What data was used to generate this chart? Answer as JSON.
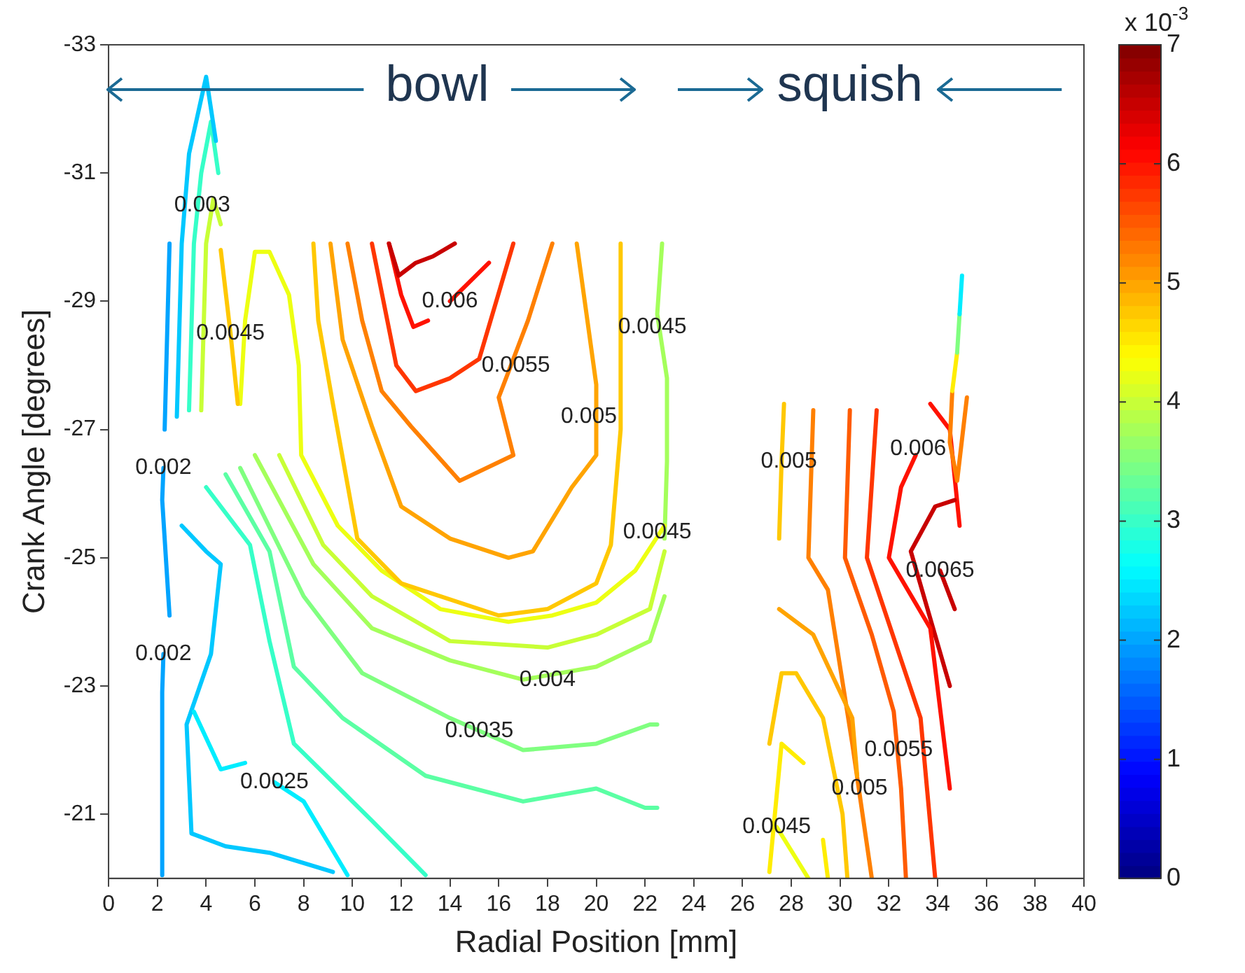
{
  "chart_data": {
    "type": "line",
    "xlabel": "Radial Position [mm]",
    "ylabel": "Crank Angle [degrees]",
    "clabel": "x 10$^{-3}$",
    "xlim": [
      0,
      40
    ],
    "xticks": [
      0,
      2,
      4,
      6,
      8,
      10,
      12,
      14,
      16,
      18,
      20,
      22,
      24,
      26,
      28,
      30,
      32,
      34,
      36,
      38,
      40
    ],
    "ylim": [
      -20,
      -33
    ],
    "yticks": [
      -33,
      -31,
      -29,
      -27,
      -25,
      -23,
      -21
    ],
    "clim": [
      0,
      7
    ],
    "cticks": [
      0,
      1,
      2,
      3,
      4,
      5,
      6,
      7
    ],
    "grid": false,
    "legend": false,
    "marker": "none",
    "line_style": "solid",
    "series": [
      {
        "color": "#c80000",
        "x": [
          11.5,
          11.9,
          12.6,
          13.3,
          14.2
        ],
        "values": [
          -29.9,
          -29.4,
          -29.6,
          -29.7,
          -29.9
        ]
      },
      {
        "color": "#ff1200",
        "x": [
          11.5,
          12,
          12.5,
          13.1
        ],
        "values": [
          -29.9,
          -29.1,
          -28.6,
          -28.7
        ]
      },
      {
        "color": "#ff1200",
        "x": [
          14,
          14.8,
          15.6
        ],
        "values": [
          -29,
          -29.3,
          -29.6
        ]
      },
      {
        "color": "#ff3600",
        "x": [
          10.8,
          11.8,
          12.6,
          14,
          15.2,
          16.6
        ],
        "values": [
          -29.9,
          -28,
          -27.6,
          -27.8,
          -28.1,
          -29.9
        ]
      },
      {
        "color": "#ff8000",
        "x": [
          9.8,
          10.4,
          11.2,
          12.4,
          14.4,
          16.6,
          16,
          17.2,
          18.2
        ],
        "values": [
          -29.9,
          -28.7,
          -27.6,
          -27.05,
          -26.2,
          -26.6,
          -27.5,
          -28.7,
          -29.9
        ]
      },
      {
        "color": "#ffa400",
        "x": [
          9.1,
          9.6,
          10.8,
          12,
          14,
          16.4,
          17.4,
          19,
          20,
          20,
          19.2
        ],
        "values": [
          -29.9,
          -28.4,
          -27.05,
          -25.8,
          -25.3,
          -25,
          -25.1,
          -26.1,
          -26.6,
          -27.7,
          -29.9
        ]
      },
      {
        "color": "#ffc800",
        "x": [
          8.4,
          8.6,
          9.2,
          10.2,
          12,
          16,
          18,
          20,
          20.6,
          20.8,
          21,
          21
        ],
        "values": [
          -29.9,
          -28.7,
          -27.4,
          -25.3,
          -24.6,
          -24.1,
          -24.2,
          -24.6,
          -25.2,
          -26.1,
          -27,
          -29.9
        ]
      },
      {
        "color": "#ffc800",
        "x": [
          4.6,
          5,
          5.3
        ],
        "values": [
          -29.8,
          -28.5,
          -27.4
        ]
      },
      {
        "color": "#edff12",
        "x": [
          5.4,
          5.6,
          6,
          6.6,
          7.4,
          7.8,
          7.9,
          9.4,
          11.2,
          13.6,
          16.4,
          18.2,
          20,
          21.6,
          22.8
        ],
        "values": [
          -27.4,
          -28.7,
          -29.77,
          -29.77,
          -29.1,
          -28,
          -26.6,
          -25.5,
          -24.8,
          -24.2,
          -24,
          -24.1,
          -24.3,
          -24.8,
          -25.5
        ]
      },
      {
        "color": "#c8ff36",
        "x": [
          7,
          8.8,
          10.8,
          14,
          18,
          20,
          22.2,
          22.8
        ],
        "values": [
          -26.6,
          -25.2,
          -24.4,
          -23.7,
          -23.6,
          -23.8,
          -24.2,
          -25.1
        ]
      },
      {
        "color": "#a4ff5b",
        "x": [
          6,
          8.4,
          10.8,
          14,
          17,
          20,
          22.2,
          22.8
        ],
        "values": [
          -26.6,
          -24.9,
          -23.9,
          -23.4,
          -23.1,
          -23.3,
          -23.7,
          -24.4
        ]
      },
      {
        "color": "#80ff80",
        "x": [
          5.4,
          8,
          10.4,
          14,
          17,
          20,
          22.2,
          22.5
        ],
        "values": [
          -26.4,
          -24.4,
          -23.2,
          -22.5,
          -22,
          -22.1,
          -22.4,
          -22.4
        ]
      },
      {
        "color": "#5bffa4",
        "x": [
          4.8,
          6.6,
          7.6,
          9.6,
          13,
          17,
          20,
          22,
          22.5
        ],
        "values": [
          -26.3,
          -25.1,
          -23.3,
          -22.5,
          -21.6,
          -21.2,
          -21.4,
          -21.1,
          -21.1
        ]
      },
      {
        "color": "#36ffc8",
        "x": [
          4,
          5.8,
          6.6,
          7.6,
          10.8,
          13
        ],
        "values": [
          -26.1,
          -25.2,
          -23.7,
          -22.1,
          -20.9,
          -20.05
        ]
      },
      {
        "color": "#00edff",
        "x": [
          3.5,
          4.6,
          5.6
        ],
        "values": [
          -22.6,
          -21.7,
          -21.8
        ]
      },
      {
        "color": "#00edff",
        "x": [
          6.8,
          8,
          9.8
        ],
        "values": [
          -21.5,
          -21.2,
          -20.05
        ]
      },
      {
        "color": "#00c8ff",
        "x": [
          3,
          4,
          4.6,
          4.2,
          3.2,
          3.4,
          4.8,
          6.6,
          9.2
        ],
        "values": [
          -25.5,
          -25.1,
          -24.9,
          -23.5,
          -22.4,
          -20.7,
          -20.5,
          -20.4,
          -20.1
        ]
      },
      {
        "color": "#00a4ff",
        "x": [
          2.25,
          2.2,
          2.2
        ],
        "values": [
          -23.5,
          -22.9,
          -20.05
        ]
      },
      {
        "color": "#00a4ff",
        "x": [
          2.25,
          2.2,
          2.5
        ],
        "values": [
          -26.4,
          -25.9,
          -24.1
        ]
      },
      {
        "color": "#00a4ff",
        "x": [
          2.3,
          2.5
        ],
        "values": [
          -27,
          -29.9
        ]
      },
      {
        "color": "#00c8ff",
        "x": [
          2.8,
          3,
          3.3,
          4,
          4.4
        ],
        "values": [
          -27.2,
          -29.9,
          -31.3,
          -32.5,
          -31.5
        ]
      },
      {
        "color": "#36ffc8",
        "x": [
          3.3,
          3.5,
          3.8,
          4.2,
          4.5
        ],
        "values": [
          -27.3,
          -29.9,
          -31,
          -31.8,
          -31
        ]
      },
      {
        "color": "#c8ff36",
        "x": [
          3.8,
          4,
          4.3,
          4.6
        ],
        "values": [
          -27.3,
          -29.9,
          -30.6,
          -30.2
        ]
      },
      {
        "color": "#a4ff5b",
        "x": [
          22.7,
          22.5,
          22.9,
          22.9,
          22.8
        ],
        "values": [
          -29.9,
          -28.8,
          -27.8,
          -26.5,
          -25.3
        ]
      },
      {
        "color": "#ffc800",
        "x": [
          27.7,
          27.6,
          27.5
        ],
        "values": [
          -27.4,
          -26.5,
          -25.3
        ]
      },
      {
        "color": "#ffa400",
        "x": [
          27.5,
          28.9,
          30.5,
          30.7
        ],
        "values": [
          -24.2,
          -23.8,
          -22.5,
          -21.6
        ]
      },
      {
        "color": "#ffc800",
        "x": [
          27.1,
          27.6,
          28.2,
          29.3,
          30.1,
          30.3
        ],
        "values": [
          -22.1,
          -23.2,
          -23.2,
          -22.5,
          -21,
          -20
        ]
      },
      {
        "color": "#ffed00",
        "x": [
          27.1,
          27.6,
          28.5
        ],
        "values": [
          -20.1,
          -22.1,
          -21.8
        ]
      },
      {
        "color": "#ffed00",
        "x": [
          29.3,
          29.5
        ],
        "values": [
          -20.6,
          -20
        ]
      },
      {
        "color": "#edff12",
        "x": [
          27.4,
          28.7
        ],
        "values": [
          -20.8,
          -20
        ]
      },
      {
        "color": "#ff8000",
        "x": [
          28.9,
          28.7,
          29.5,
          30.5,
          31.3
        ],
        "values": [
          -27.3,
          -25,
          -24.5,
          -22.1,
          -20
        ]
      },
      {
        "color": "#ff5b00",
        "x": [
          30.4,
          30.2,
          31.3,
          32.2,
          32.5,
          32.7
        ],
        "values": [
          -27.3,
          -25,
          -23.8,
          -22.6,
          -21.4,
          -20
        ]
      },
      {
        "color": "#ff3600",
        "x": [
          31.5,
          31.1,
          33.3,
          33.9
        ],
        "values": [
          -27.3,
          -25,
          -22.5,
          -20
        ]
      },
      {
        "color": "#ff1200",
        "x": [
          33.1,
          32.5,
          32,
          33.7,
          34.5
        ],
        "values": [
          -26.6,
          -26.1,
          -25,
          -23.9,
          -21.4
        ]
      },
      {
        "color": "#c80000",
        "x": [
          34.7,
          33.9,
          32.9,
          34.5
        ],
        "values": [
          -25.9,
          -25.8,
          -25.1,
          -23
        ]
      },
      {
        "color": "#c80000",
        "x": [
          34.1,
          34.7
        ],
        "values": [
          -24.8,
          -24.2
        ]
      },
      {
        "color": "#00edff",
        "x": [
          35,
          34.9
        ],
        "values": [
          -29.4,
          -28.8
        ]
      },
      {
        "color": "#80ff80",
        "x": [
          34.9,
          34.8
        ],
        "values": [
          -28.8,
          -28.2
        ]
      },
      {
        "color": "#ffed00",
        "x": [
          34.8,
          34.6
        ],
        "values": [
          -28.2,
          -27.6
        ]
      },
      {
        "color": "#ff8000",
        "x": [
          34.6,
          34.5,
          34.8,
          35.2
        ],
        "values": [
          -27.6,
          -26.8,
          -26.2,
          -27.5
        ]
      },
      {
        "color": "#ff1200",
        "x": [
          33.7,
          34.5,
          34.9
        ],
        "values": [
          -27.4,
          -27,
          -25.5
        ]
      }
    ],
    "annotations": [
      "bowl",
      "squish",
      {
        "text": "0.003",
        "x": 3.84,
        "y": -30.5
      },
      {
        "text": "0.0045",
        "x": 5,
        "y": -28.5
      },
      {
        "text": "0.002",
        "x": 2.25,
        "y": -26.4
      },
      {
        "text": "0.002",
        "x": 2.25,
        "y": -23.5
      },
      {
        "text": "0.0025",
        "x": 6.8,
        "y": -21.5
      },
      {
        "text": "0.0035",
        "x": 15.2,
        "y": -22.3
      },
      {
        "text": "0.004",
        "x": 18,
        "y": -23.1
      },
      {
        "text": "0.0045",
        "x": 22.5,
        "y": -25.4
      },
      {
        "text": "0.005",
        "x": 19.7,
        "y": -27.2
      },
      {
        "text": "0.0055",
        "x": 16.7,
        "y": -28
      },
      {
        "text": "0.006",
        "x": 14,
        "y": -29
      },
      {
        "text": "0.0045",
        "x": 22.3,
        "y": -28.6
      },
      {
        "text": "0.005",
        "x": 27.9,
        "y": -26.5
      },
      {
        "text": "0.006",
        "x": 33.2,
        "y": -26.7
      },
      {
        "text": "0.0065",
        "x": 34.1,
        "y": -24.8
      },
      {
        "text": "0.0055",
        "x": 32.4,
        "y": -22
      },
      {
        "text": "0.005",
        "x": 30.8,
        "y": -21.4
      },
      {
        "text": "0.0045",
        "x": 27.4,
        "y": -20.8
      }
    ]
  }
}
